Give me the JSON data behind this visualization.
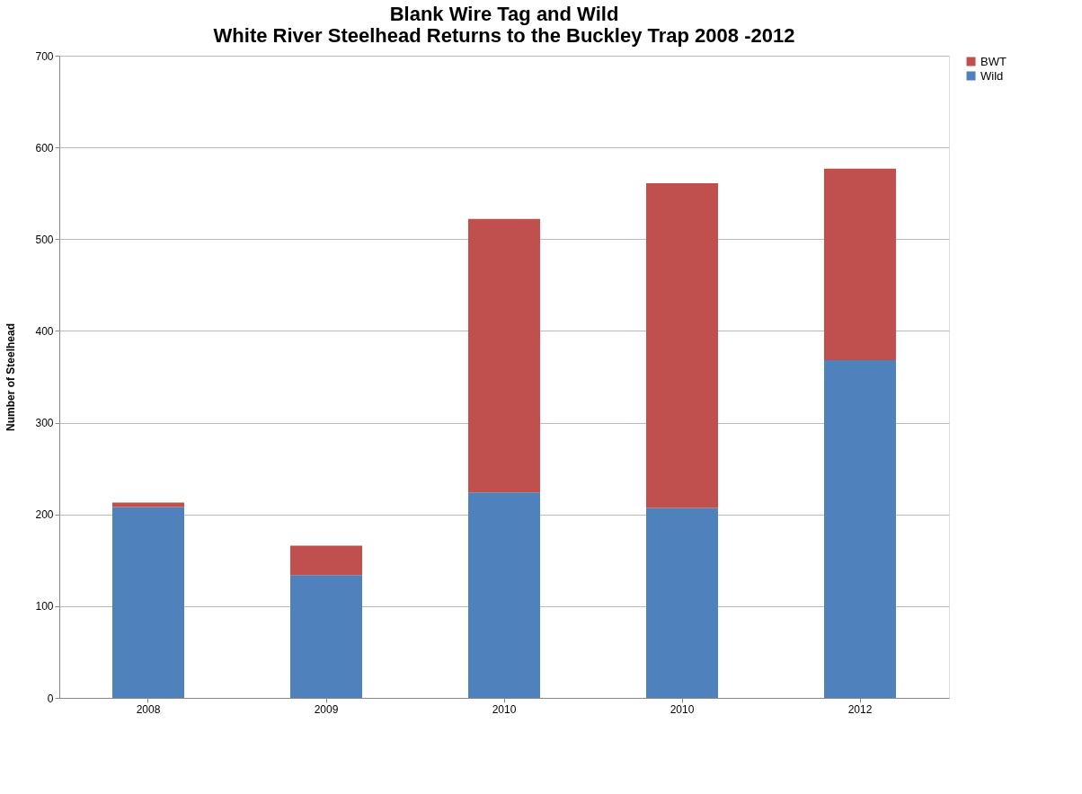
{
  "chart_data": {
    "type": "bar",
    "title": [
      "Blank Wire Tag and Wild",
      "White River Steelhead Returns to the Buckley Trap 2008 -2012"
    ],
    "ylabel": "Number of Steelhead",
    "categories": [
      "2008",
      "2009",
      "2010",
      "2010",
      "2012"
    ],
    "stacked": true,
    "series": [
      {
        "name": "Wild",
        "color": "#4f81bd",
        "values": [
          208,
          134,
          224,
          207,
          368
        ]
      },
      {
        "name": "BWT",
        "color": "#c0504d",
        "values": [
          5,
          32,
          298,
          354,
          209
        ]
      }
    ],
    "ylim": [
      0,
      700
    ],
    "yticks": [
      0,
      100,
      200,
      300,
      400,
      500,
      600,
      700
    ],
    "grid": "y",
    "legend": "right"
  }
}
